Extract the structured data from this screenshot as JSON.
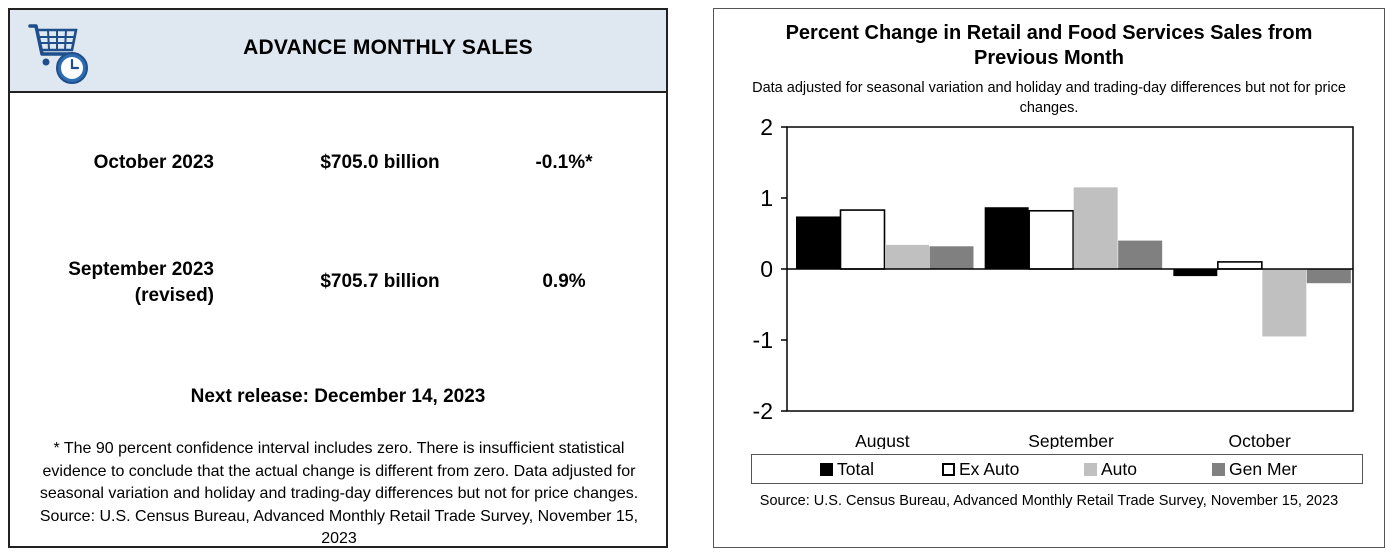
{
  "left": {
    "title": "ADVANCE MONTHLY SALES",
    "rows": [
      {
        "label_line1": "October 2023",
        "label_line2": "",
        "value": "$705.0 billion",
        "change": "-0.1%*"
      },
      {
        "label_line1": "September 2023",
        "label_line2": "(revised)",
        "value": "$705.7 billion",
        "change": "0.9%"
      }
    ],
    "next_release": "Next release: December 14, 2023",
    "footnote": "* The 90 percent confidence interval includes zero. There is insufficient statistical evidence to conclude that the actual change is different from zero. Data adjusted for seasonal variation and holiday and trading-day differences but not for price changes. Source: U.S. Census Bureau, Advanced Monthly Retail Trade Survey, November 15, 2023",
    "logo_icon": "shopping-cart-clock-icon"
  },
  "chart_data": {
    "type": "bar",
    "title": "Percent Change in Retail and Food Services Sales from Previous Month",
    "subtitle": "Data adjusted for seasonal variation and holiday and trading-day differences but not for price changes.",
    "categories": [
      "August",
      "September",
      "October"
    ],
    "series": [
      {
        "name": "Total",
        "values": [
          0.74,
          0.87,
          -0.1
        ],
        "color": "#000000"
      },
      {
        "name": "Ex Auto",
        "values": [
          0.83,
          0.82,
          0.1
        ],
        "color": "#ffffff"
      },
      {
        "name": "Auto",
        "values": [
          0.34,
          1.15,
          -0.95
        ],
        "color": "#c0c0c0"
      },
      {
        "name": "Gen Mer",
        "values": [
          0.32,
          0.4,
          -0.2
        ],
        "color": "#808080"
      }
    ],
    "yticks": [
      "2",
      "1",
      "0",
      "-1",
      "-2"
    ],
    "ylim": [
      -2,
      2
    ],
    "grid": false,
    "legend_position": "bottom",
    "source": "Source: U.S. Census Bureau, Advanced Monthly Retail Trade Survey, November 15, 2023"
  }
}
